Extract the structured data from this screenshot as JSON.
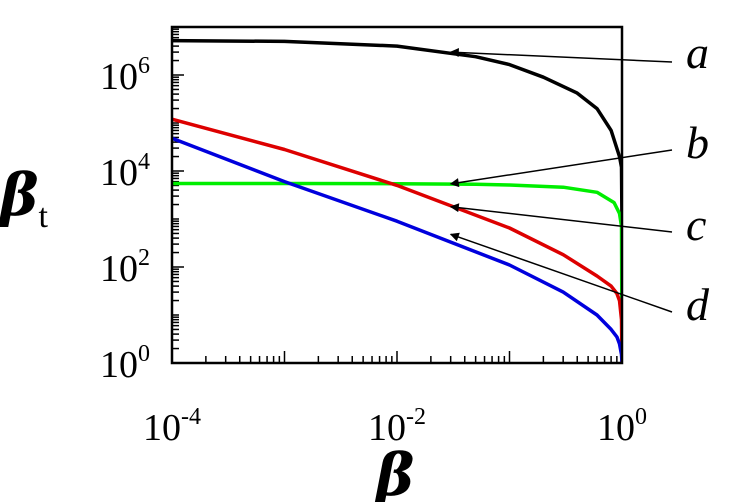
{
  "chart_data": {
    "type": "line",
    "xscale": "log",
    "yscale": "log",
    "xlabel": "β",
    "ylabel": "β",
    "ylabel_subscript": "t",
    "xlim": [
      0.0001,
      1
    ],
    "ylim": [
      1,
      10000000
    ],
    "x_ticks": [
      {
        "base": "10",
        "exp": "-4",
        "value": 0.0001
      },
      {
        "base": "10",
        "exp": "-2",
        "value": 0.01
      },
      {
        "base": "10",
        "exp": "0",
        "value": 1
      }
    ],
    "y_ticks": [
      {
        "base": "10",
        "exp": "0",
        "value": 1
      },
      {
        "base": "10",
        "exp": "2",
        "value": 100
      },
      {
        "base": "10",
        "exp": "4",
        "value": 10000
      },
      {
        "base": "10",
        "exp": "6",
        "value": 1000000
      }
    ],
    "series": [
      {
        "name": "a",
        "color": "#000000",
        "points": [
          [
            0.0001,
            5200000
          ],
          [
            0.001,
            5000000
          ],
          [
            0.01,
            4000000
          ],
          [
            0.05,
            2400000
          ],
          [
            0.1,
            1650000
          ],
          [
            0.2,
            900000
          ],
          [
            0.4,
            420000
          ],
          [
            0.6,
            200000
          ],
          [
            0.8,
            70000
          ],
          [
            0.95,
            20000
          ],
          [
            0.99,
            12000
          ],
          [
            1.0,
            700
          ]
        ]
      },
      {
        "name": "b",
        "color": "#00ee00",
        "points": [
          [
            0.0001,
            5500
          ],
          [
            0.001,
            5500
          ],
          [
            0.01,
            5450
          ],
          [
            0.05,
            5300
          ],
          [
            0.1,
            5100
          ],
          [
            0.3,
            4600
          ],
          [
            0.6,
            3600
          ],
          [
            0.85,
            2200
          ],
          [
            0.95,
            1300
          ],
          [
            0.99,
            700
          ],
          [
            1.0,
            1.2
          ]
        ]
      },
      {
        "name": "c",
        "color": "#dd0000",
        "points": [
          [
            0.0001,
            120000
          ],
          [
            0.001,
            28000
          ],
          [
            0.01,
            5000
          ],
          [
            0.1,
            650
          ],
          [
            0.3,
            180
          ],
          [
            0.6,
            65
          ],
          [
            0.8,
            40
          ],
          [
            0.9,
            28
          ],
          [
            0.95,
            20
          ],
          [
            0.99,
            8
          ],
          [
            1.0,
            1
          ]
        ]
      },
      {
        "name": "d",
        "color": "#0000dd",
        "points": [
          [
            0.0001,
            48000
          ],
          [
            0.001,
            6000
          ],
          [
            0.01,
            900
          ],
          [
            0.1,
            110
          ],
          [
            0.3,
            30
          ],
          [
            0.6,
            10
          ],
          [
            0.8,
            5
          ],
          [
            0.9,
            3.5
          ],
          [
            0.95,
            2.5
          ],
          [
            0.99,
            1.5
          ],
          [
            1.0,
            1
          ]
        ]
      }
    ],
    "annotations": [
      {
        "label": "a",
        "target": [
          0.03,
          3000000
        ]
      },
      {
        "label": "b",
        "target": [
          0.03,
          5400
        ]
      },
      {
        "label": "c",
        "target": [
          0.03,
          1800
        ]
      },
      {
        "label": "d",
        "target": [
          0.03,
          480
        ]
      }
    ]
  }
}
